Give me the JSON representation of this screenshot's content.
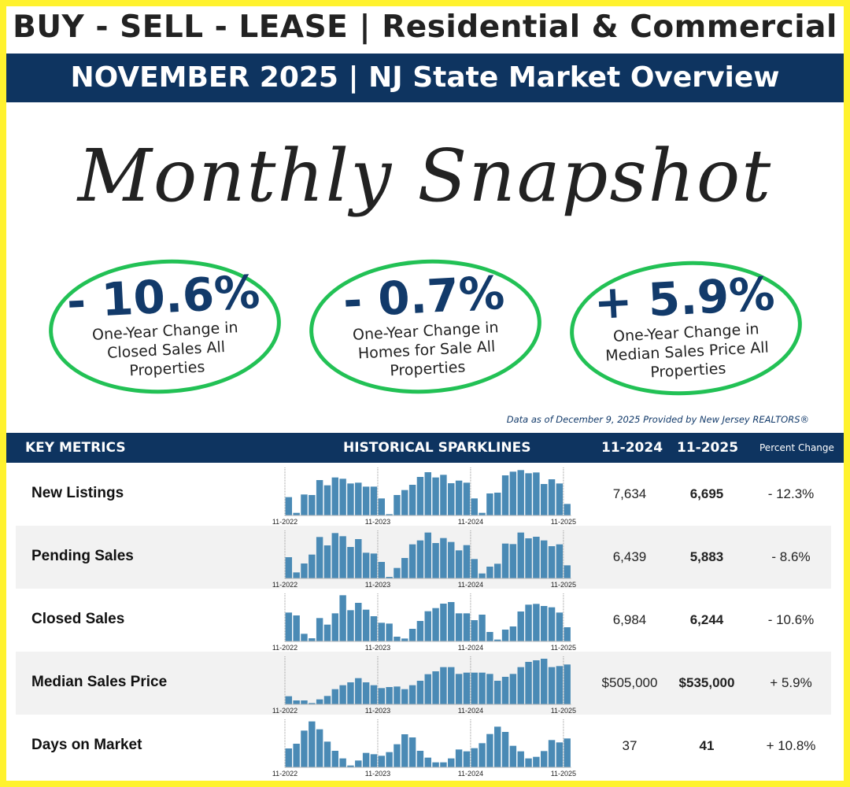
{
  "header": {
    "title": "BUY - SELL - LEASE | Residential & Commercial",
    "banner": "NOVEMBER 2025 | NJ State Market Overview",
    "script_title": "Monthly Snapshot"
  },
  "highlights": [
    {
      "value": "- 10.6%",
      "label": "One-Year Change in Closed Sales All Properties"
    },
    {
      "value": "- 0.7%",
      "label": "One-Year Change in Homes for Sale All Properties"
    },
    {
      "value": "+ 5.9%",
      "label": "One-Year Change in Median Sales Price All Properties"
    }
  ],
  "note": "Data as of December 9, 2025 Provided by New Jersey REALTORS®",
  "table": {
    "headers": {
      "metrics": "KEY METRICS",
      "sparklines": "HISTORICAL SPARKLINES",
      "prev": "11-2024",
      "curr": "11-2025",
      "pct": "Percent Change"
    }
  },
  "colors": {
    "navy": "#0e3460",
    "green": "#22c155",
    "bar": "#4a8ab5",
    "border": "#fff22e"
  },
  "chart_data": {
    "type": "bar",
    "tick_labels": [
      "11-2022",
      "11-2023",
      "11-2024",
      "11-2025"
    ],
    "note_values": "relative bar heights (sparklines have no printed scale)",
    "rows": [
      {
        "name": "New Listings",
        "prev": "7,634",
        "curr": "6,695",
        "pct": "- 12.3%",
        "values": [
          70,
          10,
          80,
          78,
          135,
          115,
          145,
          140,
          122,
          125,
          110,
          110,
          65,
          5,
          78,
          97,
          117,
          147,
          165,
          145,
          155,
          123,
          133,
          125,
          65,
          10,
          84,
          87,
          153,
          167,
          173,
          161,
          164,
          120,
          138,
          122,
          44
        ]
      },
      {
        "name": "Pending Sales",
        "prev": "6,439",
        "curr": "5,883",
        "pct": "- 8.6%",
        "values": [
          81,
          23,
          57,
          91,
          158,
          126,
          173,
          161,
          120,
          150,
          98,
          95,
          63,
          6,
          40,
          78,
          130,
          145,
          175,
          135,
          154,
          139,
          107,
          127,
          74,
          19,
          45,
          56,
          133,
          131,
          175,
          153,
          159,
          145,
          123,
          130,
          50
        ]
      },
      {
        "name": "Closed Sales",
        "prev": "6,984",
        "curr": "6,244",
        "pct": "- 10.6%",
        "values": [
          110,
          99,
          29,
          12,
          89,
          64,
          107,
          176,
          119,
          147,
          121,
          96,
          71,
          68,
          18,
          11,
          48,
          78,
          115,
          127,
          144,
          150,
          107,
          107,
          81,
          102,
          36,
          7,
          45,
          57,
          114,
          140,
          143,
          135,
          130,
          110,
          54
        ]
      },
      {
        "name": "Median Sales Price",
        "prev": "$505,000",
        "curr": "$535,000",
        "pct": "+ 5.9%",
        "values": [
          31,
          15,
          15,
          5,
          19,
          32,
          58,
          73,
          84,
          100,
          84,
          73,
          62,
          66,
          68,
          58,
          73,
          90,
          115,
          126,
          142,
          142,
          116,
          121,
          121,
          121,
          116,
          90,
          105,
          116,
          142,
          162,
          168,
          174,
          142,
          146,
          152
        ]
      },
      {
        "name": "Days on Market",
        "prev": "37",
        "curr": "41",
        "pct": "+ 10.8%",
        "values": [
          72,
          90,
          140,
          175,
          145,
          98,
          63,
          34,
          7,
          26,
          55,
          50,
          44,
          58,
          88,
          126,
          114,
          63,
          37,
          19,
          19,
          34,
          68,
          61,
          73,
          92,
          127,
          155,
          135,
          82,
          61,
          34,
          40,
          62,
          104,
          95,
          110
        ]
      }
    ]
  }
}
